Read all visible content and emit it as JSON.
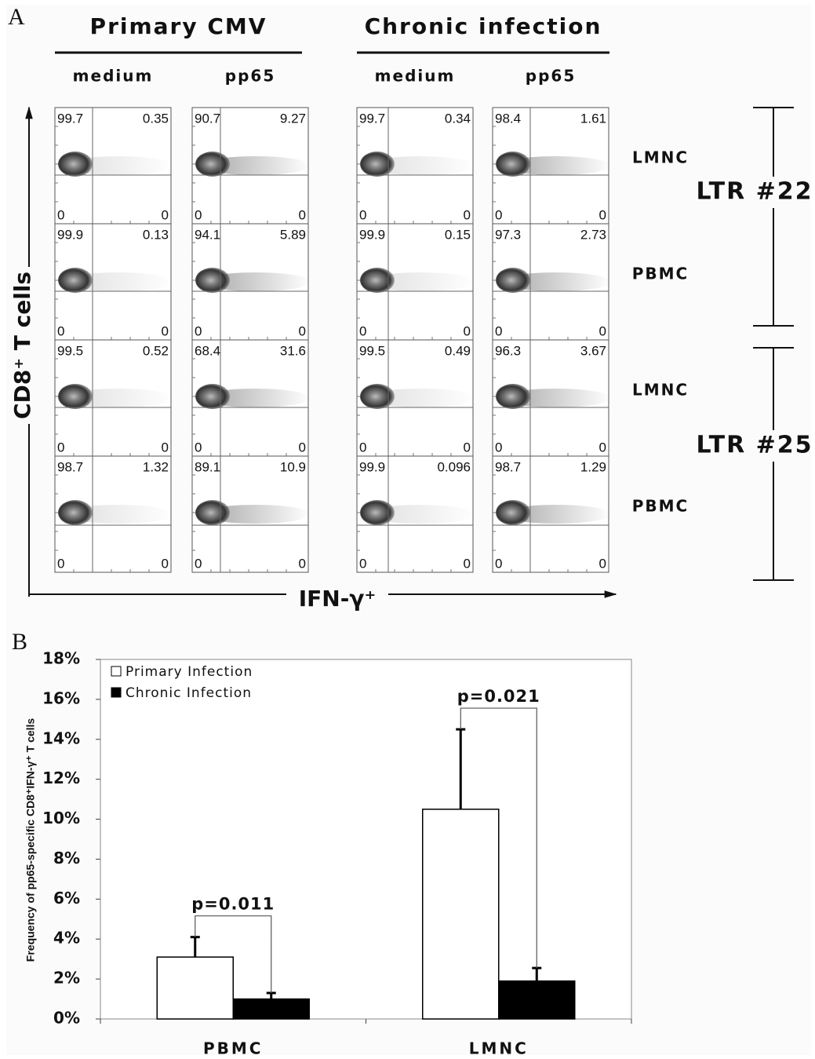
{
  "panel_a": {
    "label": "A",
    "groups": [
      {
        "title": "Primary CMV",
        "columns": [
          "medium",
          "pp65"
        ]
      },
      {
        "title": "Chronic infection",
        "columns": [
          "medium",
          "pp65"
        ]
      }
    ],
    "y_label": "CD8⁺ T cells",
    "x_label": "IFN-γ⁺",
    "rows": [
      {
        "label": "LMNC",
        "plots": [
          [
            99.7,
            0.35,
            0,
            0
          ],
          [
            90.7,
            9.27,
            0,
            0
          ],
          [
            99.7,
            0.34,
            0,
            0
          ],
          [
            98.4,
            1.61,
            0,
            0
          ]
        ]
      },
      {
        "label": "PBMC",
        "plots": [
          [
            99.9,
            0.13,
            0,
            0
          ],
          [
            94.1,
            5.89,
            0,
            0
          ],
          [
            99.9,
            0.15,
            0,
            0
          ],
          [
            97.3,
            2.73,
            0,
            0
          ]
        ]
      },
      {
        "label": "LMNC",
        "plots": [
          [
            99.5,
            0.52,
            0,
            0
          ],
          [
            68.4,
            31.6,
            0,
            0
          ],
          [
            99.5,
            0.49,
            0,
            0
          ],
          [
            96.3,
            3.67,
            0,
            0
          ]
        ]
      },
      {
        "label": "PBMC",
        "plots": [
          [
            98.7,
            1.32,
            0,
            0
          ],
          [
            89.1,
            10.9,
            0,
            0
          ],
          [
            99.9,
            0.096,
            0,
            0
          ],
          [
            98.7,
            1.29,
            0,
            0
          ]
        ]
      }
    ],
    "patients": [
      "LTR #22",
      "LTR #25"
    ]
  },
  "chart_data": {
    "type": "bar",
    "panel_label": "B",
    "ylabel": "Frequency of pp65-specific CD8⁺IFN-γ⁺ T cells",
    "categories": [
      "PBMC",
      "LMNC"
    ],
    "series": [
      {
        "name": "Primary Infection",
        "color": "#ffffff",
        "values": [
          3.1,
          10.5
        ],
        "errors": [
          1.0,
          4.0
        ]
      },
      {
        "name": "Chronic Infection",
        "color": "#000000",
        "values": [
          1.0,
          1.9
        ],
        "errors": [
          0.3,
          0.65
        ]
      }
    ],
    "ylim": [
      0,
      18
    ],
    "yticks": [
      {
        "value": 0,
        "label": "0%"
      },
      {
        "value": 2,
        "label": "2%"
      },
      {
        "value": 4,
        "label": "4%"
      },
      {
        "value": 6,
        "label": "6%"
      },
      {
        "value": 8,
        "label": "8%"
      },
      {
        "value": 10,
        "label": "10%"
      },
      {
        "value": 12,
        "label": "12%"
      },
      {
        "value": 14,
        "label": "14%"
      },
      {
        "value": 16,
        "label": "16%"
      },
      {
        "value": 18,
        "label": "18%"
      }
    ],
    "annotations": [
      "p=0.011",
      "p=0.021"
    ],
    "legend": "upper left",
    "grid": false
  }
}
